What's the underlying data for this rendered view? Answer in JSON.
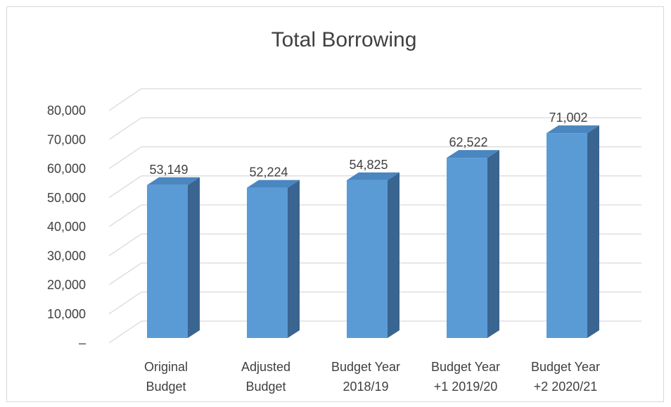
{
  "chart_data": {
    "type": "bar",
    "style": "3d-clustered-column",
    "title": "Total Borrowing",
    "categories": [
      [
        "Original",
        "Budget"
      ],
      [
        "Adjusted",
        "Budget"
      ],
      [
        "Budget Year",
        "2018/19"
      ],
      [
        "Budget Year",
        "+1 2019/20"
      ],
      [
        "Budget Year",
        "+2 2020/21"
      ]
    ],
    "values": [
      53149,
      52224,
      54825,
      62522,
      71002
    ],
    "data_labels": [
      "53,149",
      "52,224",
      "54,825",
      "62,522",
      "71,002"
    ],
    "y_ticks": [
      "–",
      "10,000",
      "20,000",
      "30,000",
      "40,000",
      "50,000",
      "60,000",
      "70,000",
      "80,000"
    ],
    "ylim": [
      0,
      80000
    ],
    "grid": true,
    "legend": "none",
    "colors": {
      "bar_front": "#5b9bd5",
      "bar_top": "#4a86c0",
      "bar_side": "#3a6590",
      "grid": "#d9d9d9",
      "text": "#404040"
    }
  }
}
